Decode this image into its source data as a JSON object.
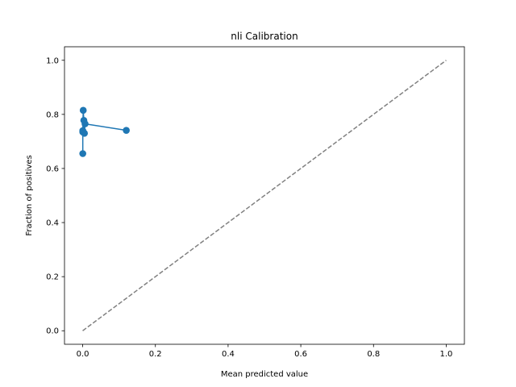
{
  "chart_data": {
    "type": "line",
    "title": "nli Calibration",
    "xlabel": "Mean predicted value",
    "ylabel": "Fraction of positives",
    "xlim": [
      -0.05,
      1.05
    ],
    "ylim": [
      -0.05,
      1.05
    ],
    "x_ticks": [
      0.0,
      0.2,
      0.4,
      0.6,
      0.8,
      1.0
    ],
    "y_ticks": [
      0.0,
      0.2,
      0.4,
      0.6,
      0.8,
      1.0
    ],
    "x_tick_labels": [
      "0.0",
      "0.2",
      "0.4",
      "0.6",
      "0.8",
      "1.0"
    ],
    "y_tick_labels": [
      "0.0",
      "0.2",
      "0.4",
      "0.6",
      "0.8",
      "1.0"
    ],
    "grid": false,
    "series": [
      {
        "style": "line-with-markers",
        "color": "#1f77b4",
        "x": [
          0.0003,
          0.0003,
          0.0003,
          0.0015,
          0.0032,
          0.0048,
          0.0065,
          0.12
        ],
        "y": [
          0.655,
          0.735,
          0.74,
          0.815,
          0.778,
          0.73,
          0.765,
          0.741
        ]
      },
      {
        "style": "dashed",
        "color": "#808080",
        "x": [
          0.0,
          1.0
        ],
        "y": [
          0.0,
          1.0
        ]
      }
    ]
  }
}
